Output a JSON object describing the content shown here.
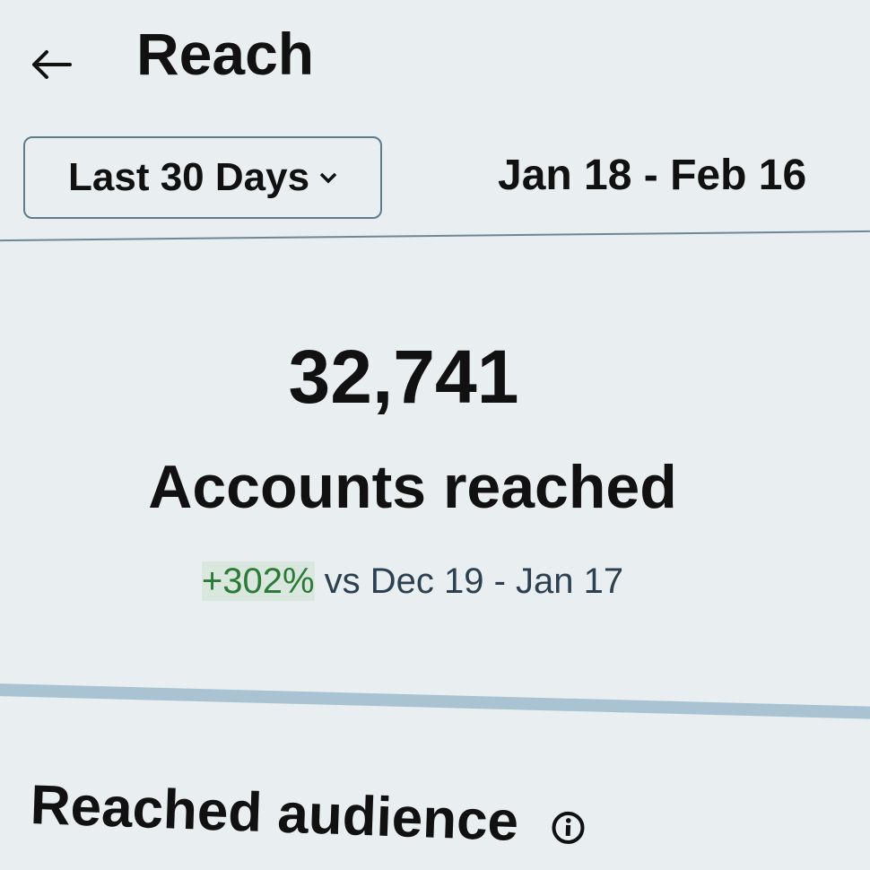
{
  "header": {
    "title": "Reach"
  },
  "filter": {
    "range": "Last 30 Days",
    "dates": "Jan 18 - Feb 16"
  },
  "summary": {
    "value": "32,741",
    "label": "Accounts reached",
    "change": "+302%",
    "comparison": "vs Dec 19 - Jan 17"
  },
  "section": {
    "title": "Reached audience"
  }
}
